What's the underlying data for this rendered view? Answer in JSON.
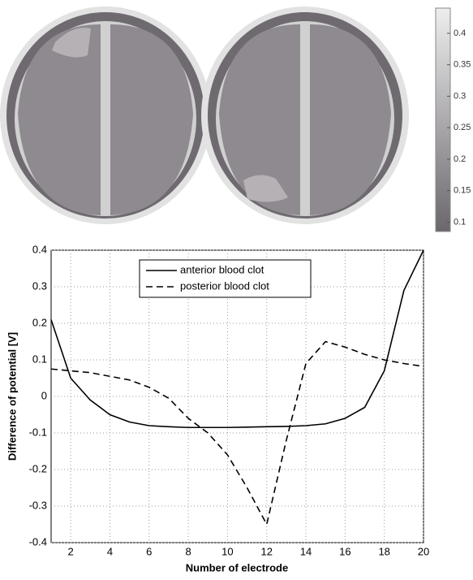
{
  "chart_data": {
    "type": "line",
    "xlabel": "Number of electrode",
    "ylabel": "Difference of potential [V]",
    "x": [
      1,
      2,
      3,
      4,
      5,
      6,
      7,
      8,
      9,
      10,
      11,
      12,
      13,
      14,
      15,
      16,
      17,
      18,
      19,
      20
    ],
    "series": [
      {
        "name": "anterior blood clot",
        "color": "#000000",
        "dash": "solid",
        "values": [
          0.21,
          0.05,
          -0.01,
          -0.05,
          -0.07,
          -0.08,
          -0.083,
          -0.085,
          -0.085,
          -0.085,
          -0.084,
          -0.083,
          -0.082,
          -0.08,
          -0.075,
          -0.06,
          -0.03,
          0.07,
          0.29,
          0.4
        ]
      },
      {
        "name": "posterior blood clot",
        "color": "#000000",
        "dash": "dashed",
        "values": [
          0.075,
          0.07,
          0.065,
          0.055,
          0.045,
          0.025,
          -0.005,
          -0.06,
          -0.1,
          -0.16,
          -0.25,
          -0.35,
          -0.12,
          0.09,
          0.15,
          0.135,
          0.115,
          0.1,
          0.09,
          0.082
        ]
      }
    ],
    "xlim": [
      1,
      20
    ],
    "xticks": [
      2,
      4,
      6,
      8,
      10,
      12,
      14,
      16,
      18,
      20
    ],
    "ylim": [
      -0.4,
      0.4
    ],
    "yticks": [
      -0.4,
      -0.3,
      -0.2,
      -0.1,
      0,
      0.1,
      0.2,
      0.3,
      0.4
    ],
    "grid": true,
    "legend": "top"
  },
  "colorbar": {
    "lim": [
      0.085,
      0.44
    ],
    "ticks": [
      0.1,
      0.15,
      0.2,
      0.25,
      0.3,
      0.35,
      0.4
    ]
  }
}
